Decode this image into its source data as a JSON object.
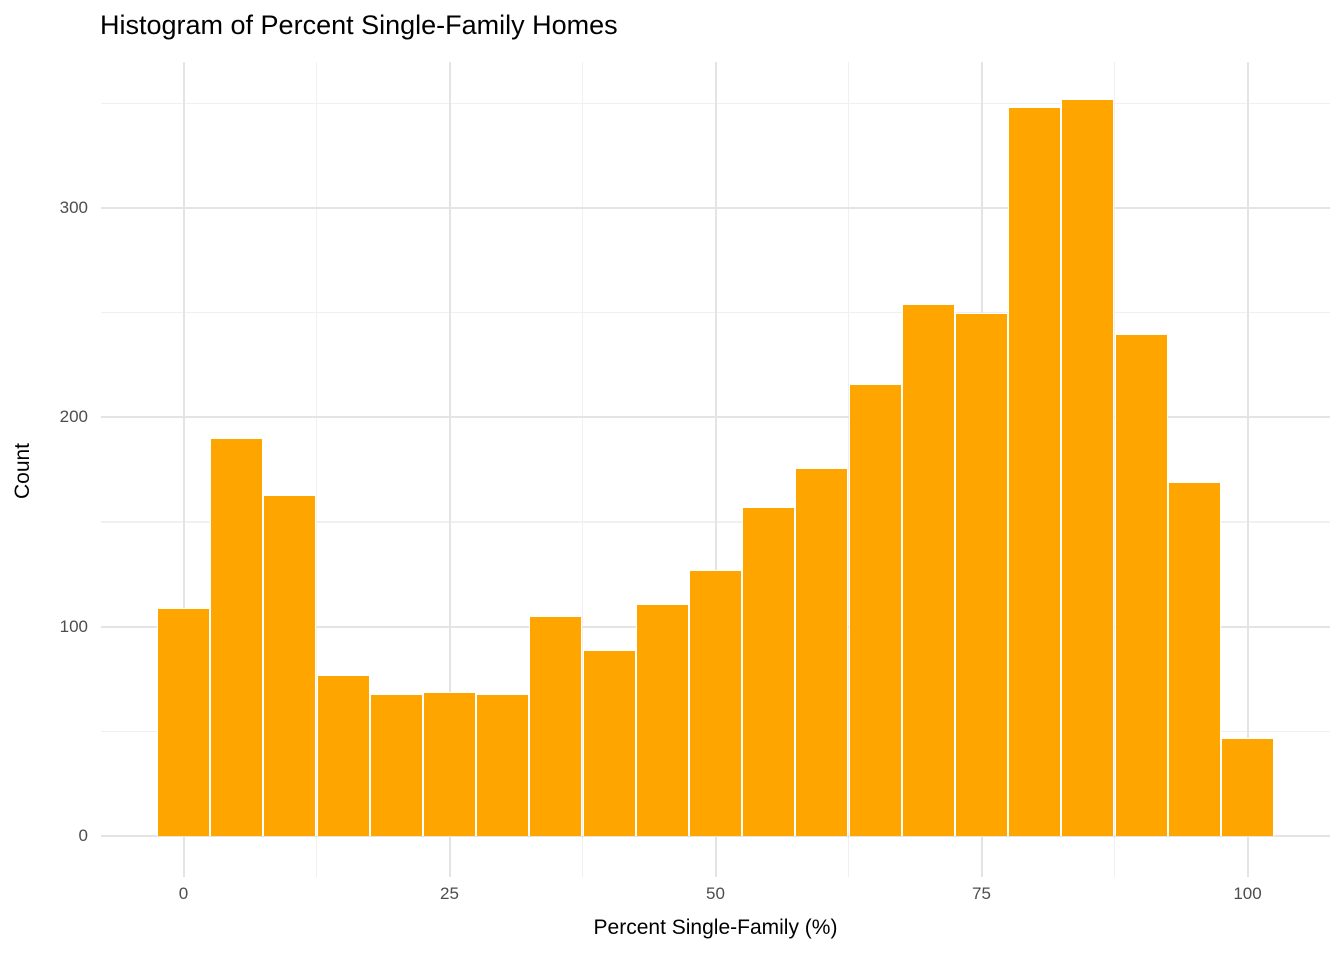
{
  "title": "Histogram of Percent Single-Family Homes",
  "chart_data": {
    "type": "bar",
    "subtype": "histogram",
    "title": "Histogram of Percent Single-Family Homes",
    "xlabel": "Percent Single-Family (%)",
    "ylabel": "Count",
    "bin_width": 5,
    "bin_centers": [
      0,
      5,
      10,
      15,
      20,
      25,
      30,
      35,
      40,
      45,
      50,
      55,
      60,
      65,
      70,
      75,
      80,
      85,
      90,
      95,
      100
    ],
    "values": [
      109,
      190,
      163,
      77,
      68,
      69,
      68,
      105,
      89,
      111,
      127,
      157,
      176,
      216,
      254,
      250,
      348,
      352,
      240,
      169,
      47
    ],
    "x_major_ticks": [
      0,
      25,
      50,
      75,
      100
    ],
    "x_minor_ticks": [
      12.5,
      37.5,
      62.5,
      87.5
    ],
    "y_major_ticks": [
      0,
      100,
      200,
      300
    ],
    "y_minor_ticks": [
      50,
      150,
      250,
      350
    ],
    "xlim": [
      -7.75,
      107.75
    ],
    "ylim": [
      -19.6,
      369.8
    ],
    "grid": "on",
    "legend": "none",
    "colors": {
      "bar_fill": "#FFA500",
      "bar_border": "#FFFFFF",
      "grid_major": "#E4E4E4",
      "grid_minor": "#F0F0F0",
      "tick_label": "#4D4D4D",
      "text": "#000000",
      "background": "#FFFFFF"
    }
  }
}
